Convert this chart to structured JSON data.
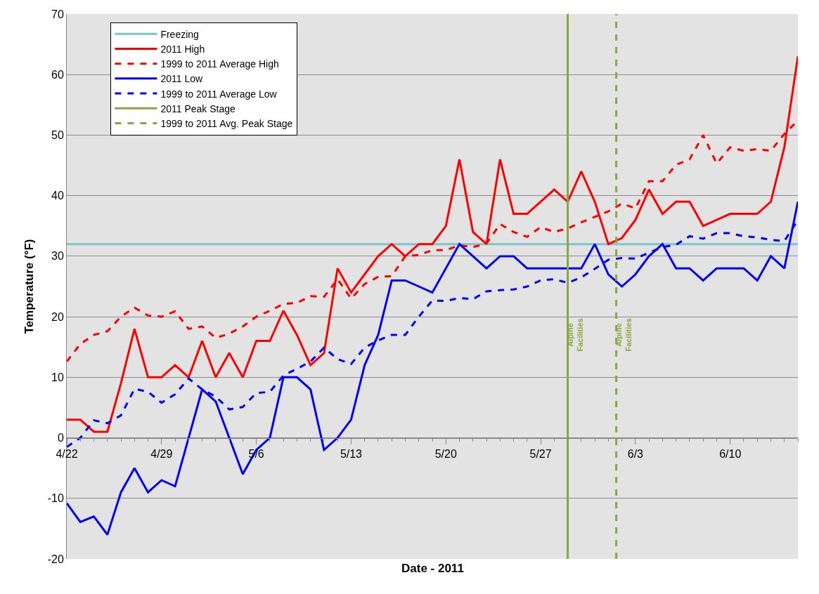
{
  "chart_data": {
    "type": "line",
    "xlabel": "Date - 2011",
    "ylabel": "Temperature (°F)",
    "x": [
      "2011-04-22",
      "2011-04-23",
      "2011-04-24",
      "2011-04-25",
      "2011-04-26",
      "2011-04-27",
      "2011-04-28",
      "2011-04-29",
      "2011-04-30",
      "2011-05-01",
      "2011-05-02",
      "2011-05-03",
      "2011-05-04",
      "2011-05-05",
      "2011-05-06",
      "2011-05-07",
      "2011-05-08",
      "2011-05-09",
      "2011-05-10",
      "2011-05-11",
      "2011-05-12",
      "2011-05-13",
      "2011-05-14",
      "2011-05-15",
      "2011-05-16",
      "2011-05-17",
      "2011-05-18",
      "2011-05-19",
      "2011-05-20",
      "2011-05-21",
      "2011-05-22",
      "2011-05-23",
      "2011-05-24",
      "2011-05-25",
      "2011-05-26",
      "2011-05-27",
      "2011-05-28",
      "2011-05-29",
      "2011-05-30",
      "2011-05-31",
      "2011-06-01",
      "2011-06-02",
      "2011-06-03",
      "2011-06-04",
      "2011-06-05",
      "2011-06-06",
      "2011-06-07",
      "2011-06-08",
      "2011-06-09",
      "2011-06-10",
      "2011-06-11",
      "2011-06-12",
      "2011-06-13",
      "2011-06-14",
      "2011-06-15"
    ],
    "series": [
      {
        "name": "Freezing",
        "color": "#7fc4cc",
        "line_style": "solid",
        "x": [
          "2011-04-22",
          "2011-06-15"
        ],
        "values": [
          32,
          32
        ]
      },
      {
        "name": "2011 High",
        "color": "#ff0000",
        "line_style": "solid",
        "values": [
          3,
          3,
          1,
          1,
          9,
          18,
          10,
          10,
          12,
          10,
          16,
          10,
          14,
          10,
          16,
          16,
          21,
          17,
          12,
          14,
          28,
          24,
          27,
          30,
          32,
          30,
          32,
          32,
          35,
          46,
          34,
          32,
          46,
          37,
          37,
          39,
          41,
          39,
          44,
          39,
          32,
          33,
          36,
          41,
          37,
          39,
          39,
          35,
          36,
          37,
          37,
          37,
          39,
          48,
          63
        ]
      },
      {
        "name": "1999 to 2011 Average High",
        "color": "#ff0000",
        "line_style": "dashed",
        "values": [
          12.6,
          15.5,
          17,
          17.6,
          20,
          21.5,
          20.2,
          20,
          20.9,
          18,
          18.4,
          16.5,
          17.2,
          18.4,
          20,
          21,
          22.1,
          22.3,
          23.4,
          23.3,
          26.2,
          23,
          25.4,
          26.6,
          26.7,
          30,
          30.2,
          31,
          31,
          31.8,
          31.5,
          32.1,
          35.3,
          34,
          33.2,
          34.8,
          34,
          34.6,
          35.6,
          36.5,
          37.4,
          38.7,
          37.9,
          42.4,
          42.4,
          45.1,
          46,
          50,
          45.3,
          48,
          47.4,
          47.7,
          47.4,
          50.2,
          52.4
        ]
      },
      {
        "name": "2011 Low",
        "color": "#0000ff",
        "line_style": "solid",
        "values": [
          -10.8,
          -13.9,
          -13,
          -16,
          -9,
          -5,
          -9,
          -7,
          -8,
          0,
          8,
          6,
          0,
          -6,
          -2,
          0,
          10,
          10,
          8,
          -2,
          0,
          3,
          12,
          17,
          26,
          26,
          25,
          24,
          28,
          32,
          30,
          28,
          30,
          30,
          28,
          28,
          28,
          28,
          28,
          32,
          27,
          25,
          27,
          30,
          32,
          28,
          28,
          26,
          28,
          28,
          28,
          26,
          30,
          28,
          39
        ]
      },
      {
        "name": "1999 to 2011 Average Low",
        "color": "#0000ff",
        "line_style": "dashed",
        "values": [
          -1.5,
          0,
          2.9,
          2.4,
          3.7,
          8.1,
          7.6,
          5.8,
          7.2,
          9.8,
          8,
          6.8,
          4.7,
          5.1,
          7.4,
          7.6,
          10.3,
          11.4,
          12.6,
          14.9,
          13,
          12.2,
          14.9,
          16.1,
          17,
          17,
          20,
          22.7,
          22.6,
          23.1,
          22.9,
          24.2,
          24.4,
          24.5,
          25,
          26,
          26.2,
          25.6,
          26.5,
          27.9,
          29.4,
          29.7,
          29.6,
          30.6,
          31.5,
          31.9,
          33.3,
          32.9,
          33.8,
          33.8,
          33.3,
          33.1,
          32.7,
          32.5,
          36
        ]
      },
      {
        "name": "2011 Peak Stage",
        "color": "#86a83c",
        "line_style": "solid",
        "x": [
          "2011-05-29",
          "2011-05-29"
        ],
        "values": [
          -20,
          70
        ]
      },
      {
        "name": "1999 to 2011 Avg. Peak Stage",
        "color": "#86a83c",
        "line_style": "dashed",
        "x": [
          "2011-06-01T14:00",
          "2011-06-01T14:00"
        ],
        "values": [
          -20,
          70
        ]
      }
    ],
    "annotations": [
      {
        "text": "Alpine\nFacilities",
        "x": "2011-05-29",
        "y": 17
      },
      {
        "text": "Alpine\nFacilities",
        "x": "2011-06-01T14:00",
        "y": 17
      }
    ],
    "xlim": [
      "2011-04-22",
      "2011-06-15"
    ],
    "xticks": [
      {
        "value": "2011-04-22",
        "label": "4/22"
      },
      {
        "value": "2011-04-29",
        "label": "4/29"
      },
      {
        "value": "2011-05-06",
        "label": "5/6"
      },
      {
        "value": "2011-05-13",
        "label": "5/13"
      },
      {
        "value": "2011-05-20",
        "label": "5/20"
      },
      {
        "value": "2011-05-27",
        "label": "5/27"
      },
      {
        "value": "2011-06-03",
        "label": "6/3"
      },
      {
        "value": "2011-06-10",
        "label": "6/10"
      }
    ],
    "ylim": [
      -20,
      70
    ],
    "yticks": [
      -20,
      -10,
      0,
      10,
      20,
      30,
      40,
      50,
      60,
      70
    ],
    "grid": "y",
    "legend": "top left",
    "marker": "none"
  }
}
